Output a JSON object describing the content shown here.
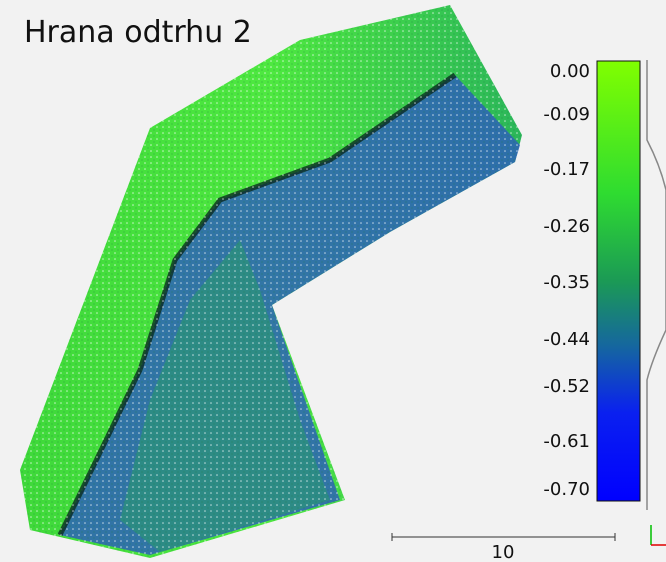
{
  "title": "Hrana odtrhu 2",
  "color_scale": {
    "labels": [
      "0.00",
      "-0.09",
      "-0.17",
      "-0.26",
      "-0.35",
      "-0.44",
      "-0.52",
      "-0.61",
      "-0.70"
    ]
  },
  "scale_bar": {
    "label": "10"
  }
}
